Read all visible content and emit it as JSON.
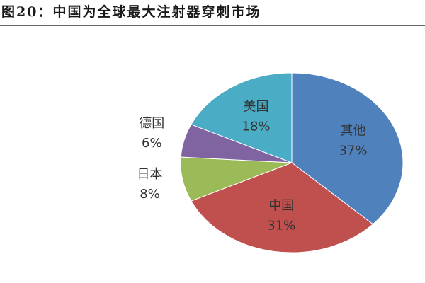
{
  "chart_data": {
    "type": "pie",
    "title": "图20：中国为全球最大注射器穿刺市场",
    "categories": [
      "其他",
      "中国",
      "日本",
      "德国",
      "美国"
    ],
    "values": [
      37,
      31,
      8,
      6,
      18
    ],
    "value_labels": [
      "37%",
      "31%",
      "8%",
      "6%",
      "18%"
    ],
    "colors": [
      "#4f81bd",
      "#c0504d",
      "#9bbb59",
      "#8064a2",
      "#4bacc6"
    ]
  }
}
